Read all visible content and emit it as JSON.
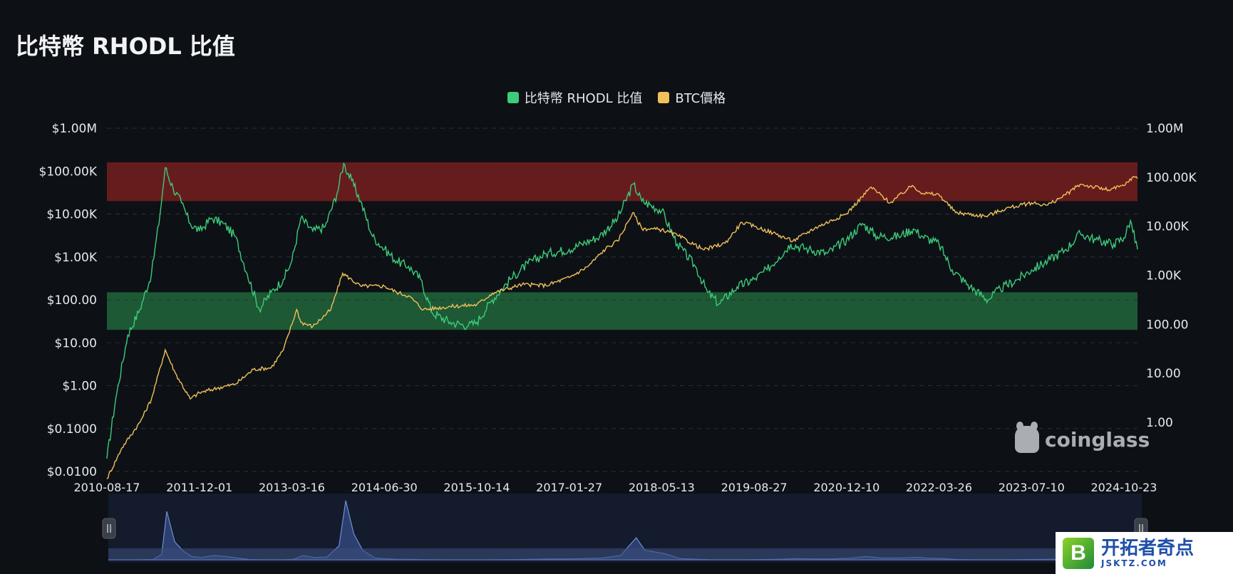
{
  "title": "比特幣 RHODL 比值",
  "legend": [
    {
      "label": "比特幣 RHODL 比值",
      "color": "#3ecb7a"
    },
    {
      "label": "BTC價格",
      "color": "#f0c05a"
    }
  ],
  "watermark": "coinglass",
  "badge": {
    "cn": "开拓者奇点",
    "en": "JSKTZ.COM",
    "logo_letter": "B"
  },
  "chart_data": {
    "type": "line",
    "title": "比特幣 RHODL 比值",
    "x_tick_labels": [
      "2010-08-17",
      "2011-12-01",
      "2013-03-16",
      "2014-06-30",
      "2015-10-14",
      "2017-01-27",
      "2018-05-13",
      "2019-08-27",
      "2020-12-10",
      "2022-03-26",
      "2023-07-10",
      "2024-10-23"
    ],
    "x_range": [
      "2010-08-17",
      "2024-12-31"
    ],
    "left_axis": {
      "scale": "log",
      "ticks": [
        "$0.0100",
        "$0.1000",
        "$1.00",
        "$10.00",
        "$100.00",
        "$1.00K",
        "$10.00K",
        "$100.00K",
        "$1.00M"
      ],
      "range": [
        0.01,
        1000000
      ]
    },
    "right_axis": {
      "scale": "log",
      "ticks": [
        "1.00",
        "10.00",
        "100.00",
        "1.00K",
        "10.00K",
        "100.00K",
        "1.00M"
      ],
      "range": [
        0.1,
        1000000
      ]
    },
    "bands": [
      {
        "name": "top",
        "axis": "left",
        "from": 20000,
        "to": 160000,
        "color": "#6b1d1d"
      },
      {
        "name": "bottom",
        "axis": "left",
        "from": 20,
        "to": 150,
        "color": "#1f5e36"
      }
    ],
    "series": [
      {
        "name": "比特幣 RHODL 比值",
        "axis": "left",
        "color": "#3ecb7a",
        "points": [
          [
            "2010-08-17",
            0.02
          ],
          [
            "2010-10-01",
            0.5
          ],
          [
            "2010-12-01",
            15
          ],
          [
            "2011-02-01",
            60
          ],
          [
            "2011-04-01",
            400
          ],
          [
            "2011-05-15",
            10000
          ],
          [
            "2011-06-10",
            120000
          ],
          [
            "2011-07-20",
            40000
          ],
          [
            "2011-09-01",
            18000
          ],
          [
            "2011-10-15",
            6000
          ],
          [
            "2011-12-01",
            4000
          ],
          [
            "2012-02-01",
            8000
          ],
          [
            "2012-04-01",
            6000
          ],
          [
            "2012-06-01",
            3000
          ],
          [
            "2012-08-01",
            400
          ],
          [
            "2012-10-01",
            60
          ],
          [
            "2012-12-01",
            150
          ],
          [
            "2013-02-01",
            300
          ],
          [
            "2013-03-16",
            800
          ],
          [
            "2013-05-01",
            8000
          ],
          [
            "2013-07-01",
            4000
          ],
          [
            "2013-09-01",
            5000
          ],
          [
            "2013-11-01",
            30000
          ],
          [
            "2013-12-05",
            150000
          ],
          [
            "2014-01-15",
            60000
          ],
          [
            "2014-03-01",
            20000
          ],
          [
            "2014-05-01",
            3000
          ],
          [
            "2014-07-01",
            1500
          ],
          [
            "2014-09-01",
            800
          ],
          [
            "2014-11-01",
            600
          ],
          [
            "2015-01-01",
            300
          ],
          [
            "2015-03-01",
            50
          ],
          [
            "2015-06-01",
            30
          ],
          [
            "2015-09-01",
            25
          ],
          [
            "2015-10-14",
            30
          ],
          [
            "2016-01-01",
            100
          ],
          [
            "2016-04-01",
            300
          ],
          [
            "2016-07-01",
            700
          ],
          [
            "2016-10-01",
            1200
          ],
          [
            "2017-01-27",
            1500
          ],
          [
            "2017-04-01",
            2000
          ],
          [
            "2017-07-01",
            3000
          ],
          [
            "2017-10-01",
            8000
          ],
          [
            "2017-12-20",
            50000
          ],
          [
            "2018-02-01",
            20000
          ],
          [
            "2018-05-13",
            12000
          ],
          [
            "2018-08-01",
            2000
          ],
          [
            "2018-11-01",
            600
          ],
          [
            "2019-01-01",
            150
          ],
          [
            "2019-03-01",
            80
          ],
          [
            "2019-06-01",
            200
          ],
          [
            "2019-08-27",
            300
          ],
          [
            "2019-11-01",
            500
          ],
          [
            "2020-01-01",
            1000
          ],
          [
            "2020-03-01",
            2000
          ],
          [
            "2020-06-01",
            1500
          ],
          [
            "2020-09-01",
            1200
          ],
          [
            "2020-12-10",
            2500
          ],
          [
            "2021-03-01",
            6000
          ],
          [
            "2021-05-15",
            3000
          ],
          [
            "2021-09-01",
            3000
          ],
          [
            "2021-11-15",
            4500
          ],
          [
            "2022-01-01",
            3000
          ],
          [
            "2022-03-26",
            2000
          ],
          [
            "2022-06-01",
            500
          ],
          [
            "2022-09-01",
            200
          ],
          [
            "2022-12-01",
            100
          ],
          [
            "2023-02-01",
            180
          ],
          [
            "2023-05-01",
            300
          ],
          [
            "2023-07-10",
            500
          ],
          [
            "2023-10-01",
            800
          ],
          [
            "2024-01-01",
            1500
          ],
          [
            "2024-03-15",
            3500
          ],
          [
            "2024-06-01",
            2500
          ],
          [
            "2024-09-01",
            2000
          ],
          [
            "2024-10-23",
            2800
          ],
          [
            "2024-11-25",
            7000
          ],
          [
            "2024-12-31",
            1500
          ]
        ]
      },
      {
        "name": "BTC價格",
        "axis": "right",
        "color": "#f0c05a",
        "points": [
          [
            "2010-08-17",
            0.07
          ],
          [
            "2010-11-01",
            0.3
          ],
          [
            "2011-02-01",
            1
          ],
          [
            "2011-04-01",
            3
          ],
          [
            "2011-06-10",
            30
          ],
          [
            "2011-08-01",
            10
          ],
          [
            "2011-10-15",
            3
          ],
          [
            "2011-12-01",
            4
          ],
          [
            "2012-03-01",
            5
          ],
          [
            "2012-06-01",
            6
          ],
          [
            "2012-09-01",
            12
          ],
          [
            "2012-12-01",
            13
          ],
          [
            "2013-02-01",
            30
          ],
          [
            "2013-04-10",
            200
          ],
          [
            "2013-05-01",
            110
          ],
          [
            "2013-07-01",
            90
          ],
          [
            "2013-10-01",
            200
          ],
          [
            "2013-11-30",
            1100
          ],
          [
            "2014-03-01",
            600
          ],
          [
            "2014-06-30",
            600
          ],
          [
            "2014-09-01",
            450
          ],
          [
            "2014-11-01",
            380
          ],
          [
            "2015-01-15",
            200
          ],
          [
            "2015-06-01",
            230
          ],
          [
            "2015-10-14",
            250
          ],
          [
            "2016-01-01",
            430
          ],
          [
            "2016-06-01",
            650
          ],
          [
            "2016-10-01",
            620
          ],
          [
            "2017-01-27",
            900
          ],
          [
            "2017-05-01",
            1500
          ],
          [
            "2017-08-01",
            3500
          ],
          [
            "2017-10-01",
            5000
          ],
          [
            "2017-12-17",
            19000
          ],
          [
            "2018-02-01",
            9000
          ],
          [
            "2018-05-13",
            8500
          ],
          [
            "2018-08-01",
            6500
          ],
          [
            "2018-12-15",
            3300
          ],
          [
            "2019-04-01",
            4500
          ],
          [
            "2019-06-26",
            12000
          ],
          [
            "2019-08-27",
            10000
          ],
          [
            "2019-12-01",
            7300
          ],
          [
            "2020-03-12",
            5000
          ],
          [
            "2020-07-01",
            9200
          ],
          [
            "2020-12-10",
            18000
          ],
          [
            "2021-04-14",
            63000
          ],
          [
            "2021-07-20",
            30000
          ],
          [
            "2021-11-10",
            68000
          ],
          [
            "2022-01-01",
            47000
          ],
          [
            "2022-03-26",
            44000
          ],
          [
            "2022-06-18",
            19000
          ],
          [
            "2022-11-20",
            16000
          ],
          [
            "2023-03-01",
            23000
          ],
          [
            "2023-07-10",
            30000
          ],
          [
            "2023-10-01",
            27000
          ],
          [
            "2024-01-01",
            44000
          ],
          [
            "2024-03-14",
            72000
          ],
          [
            "2024-08-05",
            55000
          ],
          [
            "2024-10-23",
            67000
          ],
          [
            "2024-12-05",
            100000
          ],
          [
            "2024-12-31",
            94000
          ]
        ]
      }
    ],
    "navigator": {
      "color": "#6f8fd6",
      "background": "#131b2d"
    },
    "grid": true,
    "legend_position": "top-center"
  }
}
